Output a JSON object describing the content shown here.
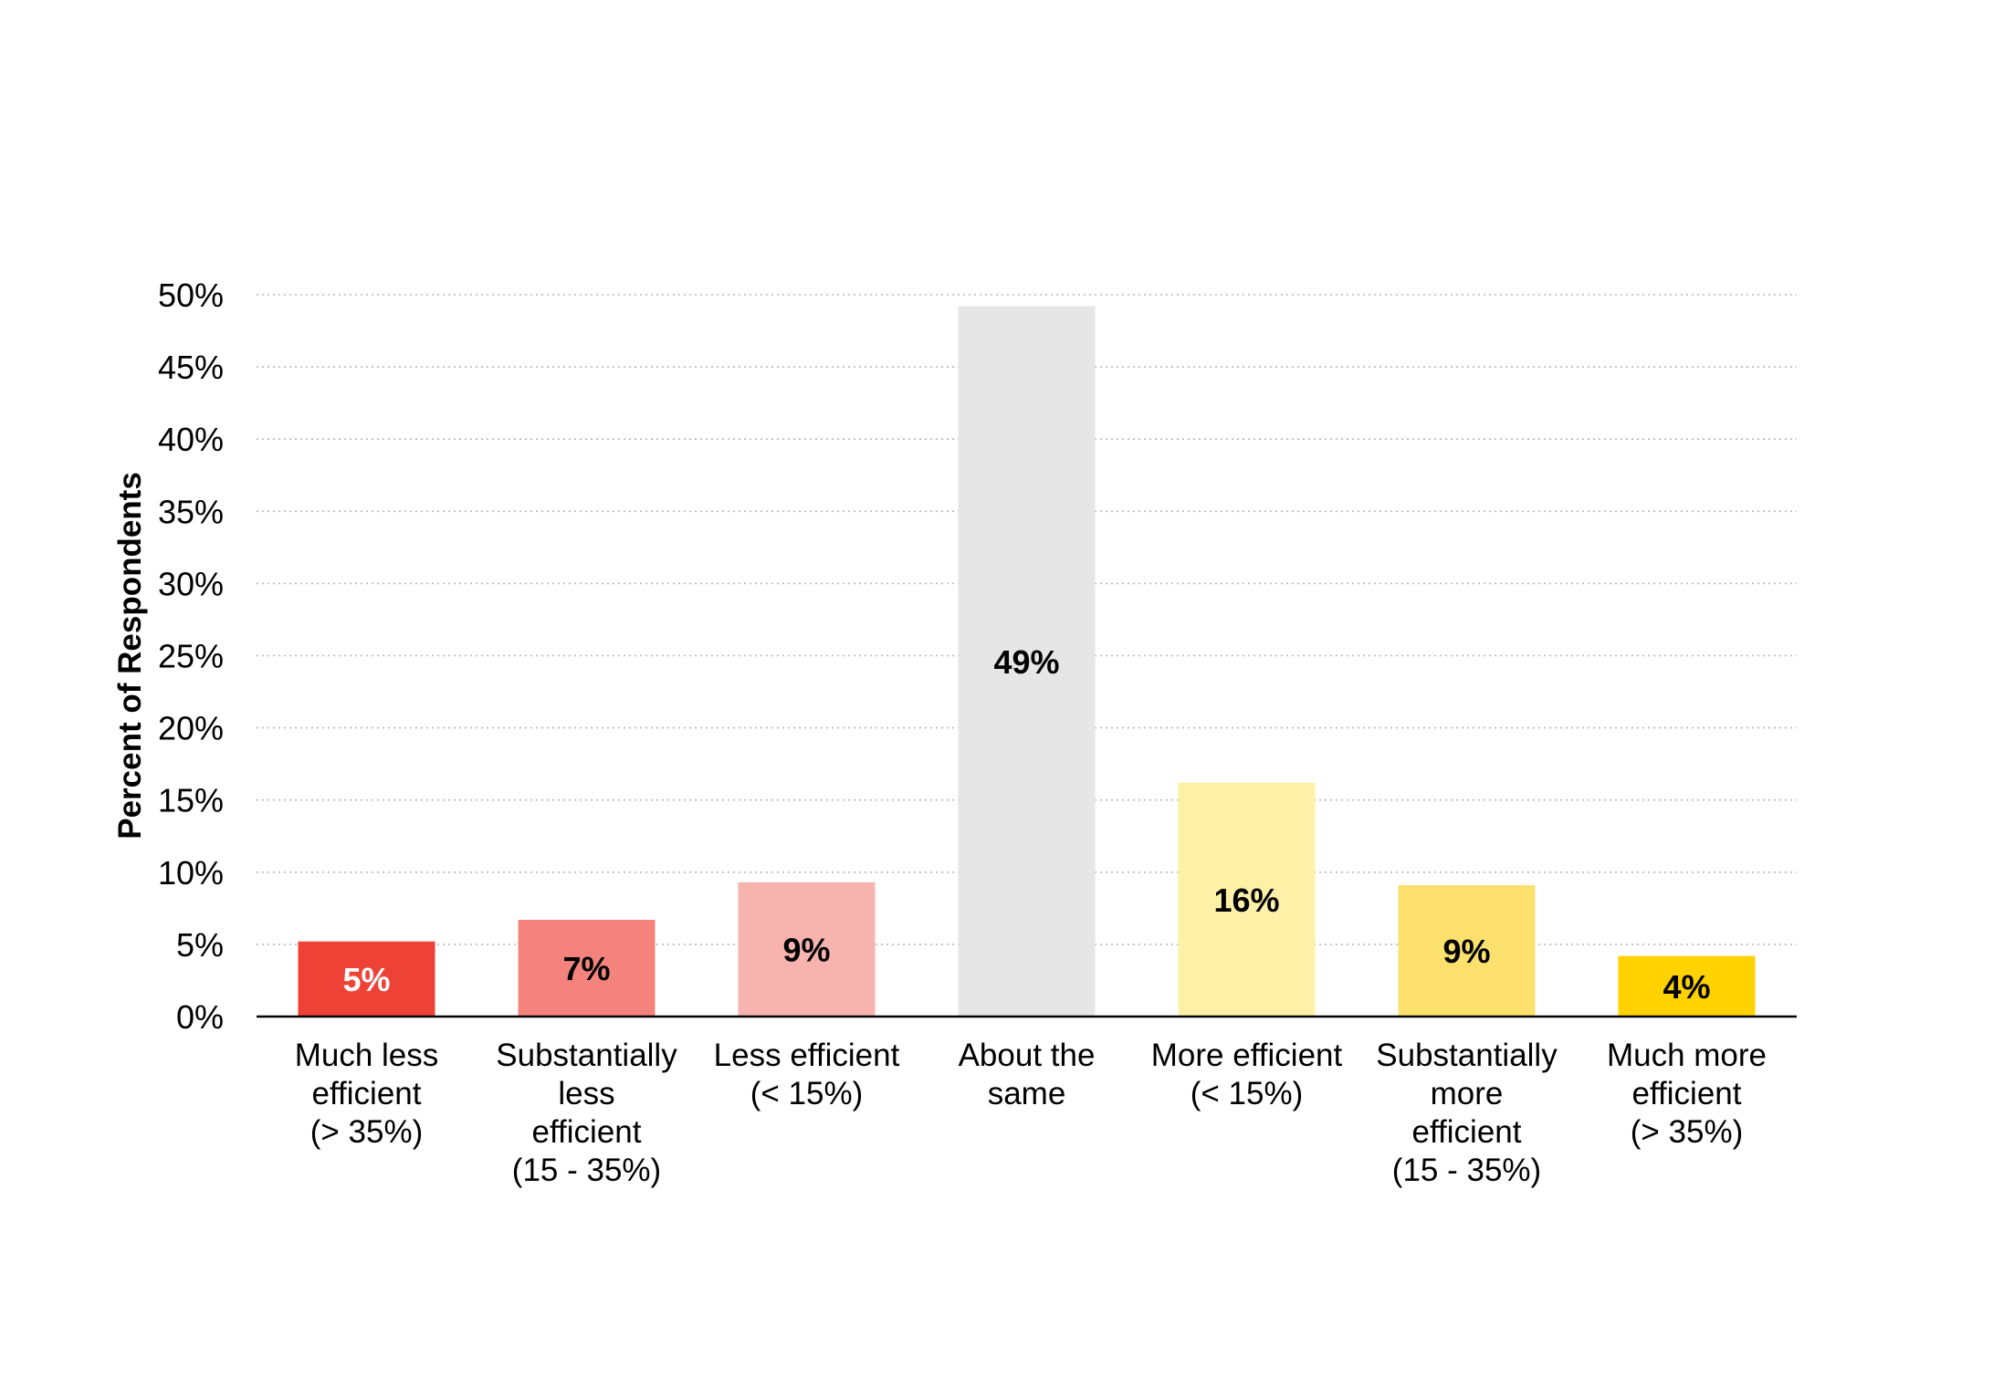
{
  "chart_data": {
    "type": "bar",
    "title": "",
    "xlabel": "",
    "ylabel": "Percent of Respondents",
    "ylim": [
      0,
      50
    ],
    "y_ticks": [
      0,
      5,
      10,
      15,
      20,
      25,
      30,
      35,
      40,
      45,
      50
    ],
    "y_tick_labels": [
      "0%",
      "5%",
      "10%",
      "15%",
      "20%",
      "25%",
      "30%",
      "35%",
      "40%",
      "45%",
      "50%"
    ],
    "grid": true,
    "legend": "none",
    "categories": [
      [
        "Much less",
        "efficient",
        "(> 35%)"
      ],
      [
        "Substantially",
        "less",
        "efficient",
        "(15 - 35%)"
      ],
      [
        "Less efficient",
        "(< 15%)"
      ],
      [
        "About the",
        "same"
      ],
      [
        "More efficient",
        "(< 15%)"
      ],
      [
        "Substantially",
        "more",
        "efficient",
        "(15 - 35%)"
      ],
      [
        "Much more",
        "efficient",
        "(> 35%)"
      ]
    ],
    "values": [
      5.2,
      6.7,
      9.3,
      49.2,
      16.2,
      9.1,
      4.2
    ],
    "data_labels": [
      "5%",
      "7%",
      "9%",
      "49%",
      "16%",
      "9%",
      "4%"
    ],
    "colors": [
      "#ee4236",
      "#f4837d",
      "#f7b3ae",
      "#e6e6e6",
      "#fff0a8",
      "#fbe06e",
      "#ffd200"
    ],
    "label_colors": [
      "#ffffff",
      "#000000",
      "#000000",
      "#000000",
      "#000000",
      "#000000",
      "#000000"
    ]
  }
}
